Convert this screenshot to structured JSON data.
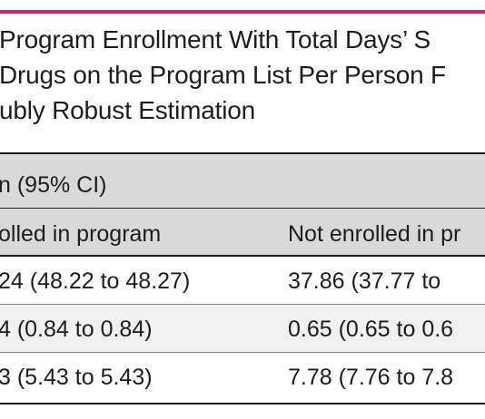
{
  "colors": {
    "accent_rule": "#d6245e",
    "header_band": "#d9d9da",
    "alt_row": "#f0f0f1",
    "text": "#1d1d1b"
  },
  "table": {
    "title_lines": [
      "Program Enrollment With Total Days’ S",
      "Drugs on the Program List Per Person F",
      "ubly Robust Estimation"
    ],
    "group_header": "n (95% CI)",
    "column_headers": [
      "olled in program",
      "Not enrolled in pr"
    ],
    "rows": [
      [
        "24 (48.22 to 48.27)",
        "37.86 (37.77 to"
      ],
      [
        "4 (0.84 to 0.84)",
        "0.65 (0.65 to 0.6"
      ],
      [
        "3 (5.43 to 5.43)",
        "7.78 (7.76 to 7.8"
      ]
    ]
  }
}
